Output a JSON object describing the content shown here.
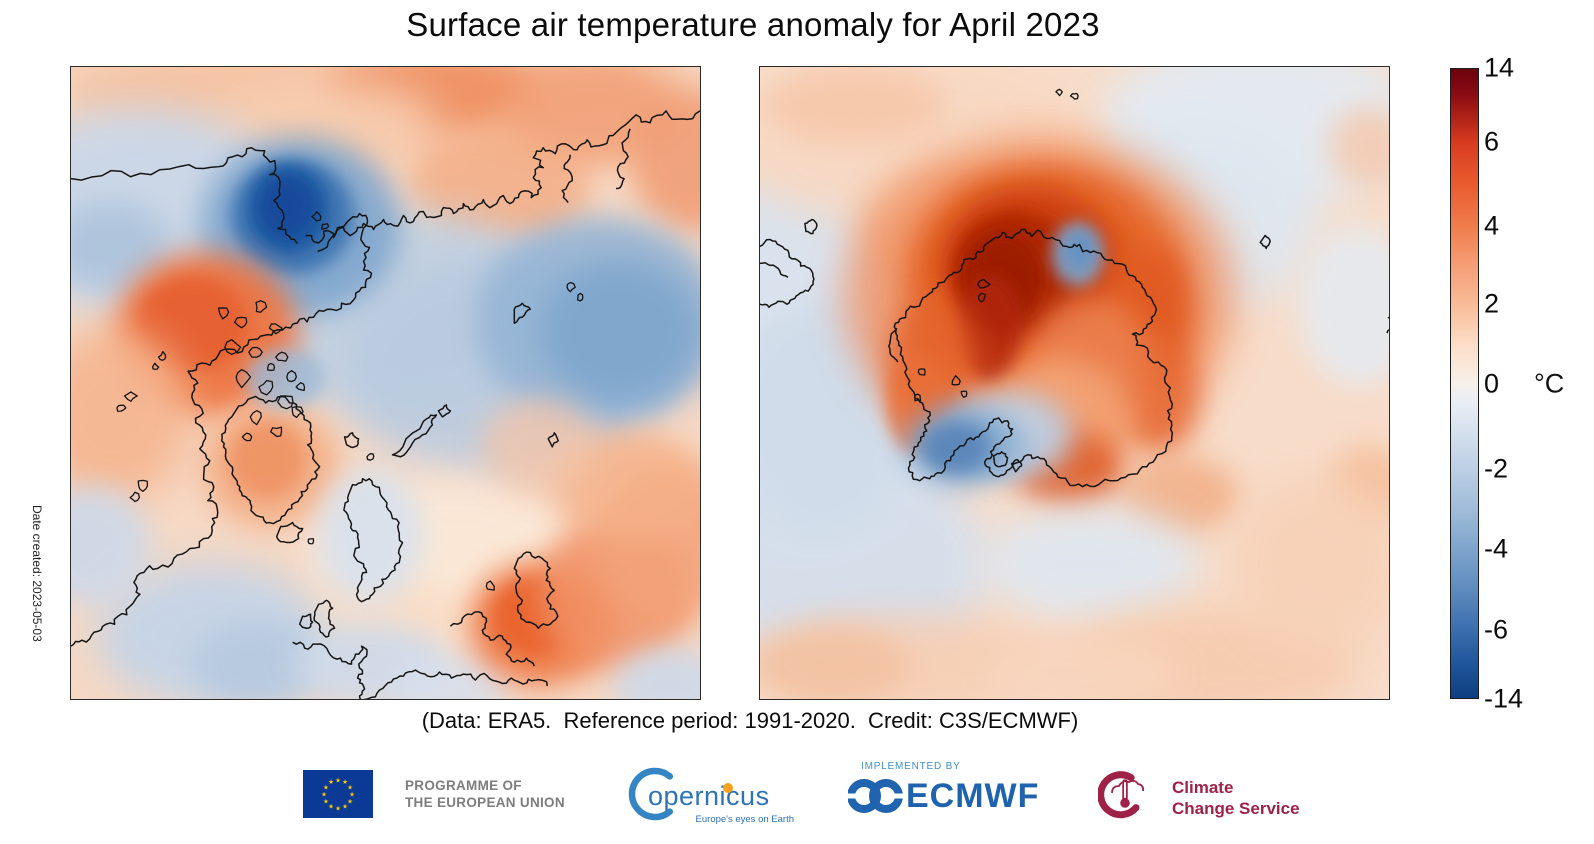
{
  "title": "Surface air temperature anomaly for April 2023",
  "caption": "(Data: ERA5.  Reference period: 1991-2020.  Credit: C3S/ECMWF)",
  "side_note": "Date created: 2023-05-03",
  "colorbar": {
    "unit": "°C",
    "ticks": [
      "14",
      "6",
      "4",
      "2",
      "0",
      "-2",
      "-4",
      "-6",
      "-14"
    ]
  },
  "footer": {
    "eu_programme": {
      "line1": "PROGRAMME OF",
      "line2": "THE EUROPEAN UNION"
    },
    "copernicus": {
      "wordmark": "opernicus",
      "tagline": "Europe's eyes on Earth"
    },
    "ecmwf": {
      "implemented_by": "IMPLEMENTED BY",
      "wordmark": "ECMWF"
    },
    "climate_change_service": {
      "line1": "Climate",
      "line2": "Change Service"
    }
  },
  "chart_data": {
    "type": "heatmap",
    "title": "Surface air temperature anomaly for April 2023",
    "variable": "Surface air temperature anomaly",
    "period": "April 2023",
    "reference_period": "1991-2020",
    "data_source": "ERA5",
    "credit": "C3S/ECMWF",
    "date_created": "2023-05-03",
    "colorbar": {
      "unit": "°C",
      "min": -14,
      "max": 14,
      "ticks": [
        14,
        6,
        4,
        2,
        0,
        -2,
        -4,
        -6,
        -14
      ],
      "palette": "diverging red-white-blue (warm anomalies red/orange, cold anomalies blue)"
    },
    "panels": [
      {
        "projection": "North polar view (Arctic)",
        "notable_features": [
          "strong cold anomaly (about -8 to -12 °C) over the Bering Strait / Chukchi Sea",
          "cold anomaly band across the central Arctic Ocean and eastern Siberia",
          "warm anomaly (about +3 to +5 °C) over Alaska, Yukon and the western Canadian Arctic",
          "warm anomalies over eastern Europe / western Russia (bottom right)",
          "cool anomalies over the North Pacific (bottom left), central Canada edge and Scandinavia"
        ]
      },
      {
        "projection": "South polar view (Antarctic)",
        "notable_features": [
          "very strong warm anomaly (about +8 to +12 °C) over West Antarctica and the Weddell Sea sector",
          "warm ring along the East Antarctic coastline",
          "cool anomalies over the Ross Sea sector with a stronger cold pocket west of the Antarctic Peninsula",
          "small cold pocket on the coast near the top of the continent",
          "mild warm anomalies over much of the mid-latitude Southern Ocean, pale cool patch east of South America"
        ]
      }
    ]
  }
}
